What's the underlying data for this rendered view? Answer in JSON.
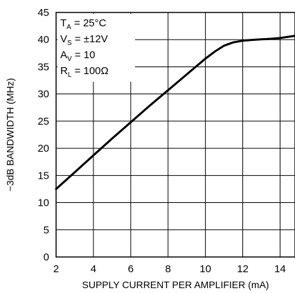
{
  "chart_data": {
    "type": "line",
    "title": "",
    "xlabel": "SUPPLY CURRENT PER AMPLIFIER (mA)",
    "ylabel": "−3dB BANDWIDTH (MHz)",
    "xlim": [
      2,
      14.8
    ],
    "ylim": [
      0,
      45
    ],
    "x_ticks": [
      "2",
      "4",
      "6",
      "8",
      "10",
      "12",
      "14"
    ],
    "y_ticks": [
      "0",
      "5",
      "10",
      "15",
      "20",
      "25",
      "30",
      "35",
      "40",
      "45"
    ],
    "grid": true,
    "annotations": {
      "ta": {
        "main": "T",
        "sub": "A",
        "rest": " = 25°C"
      },
      "vs": {
        "main": "V",
        "sub": "S",
        "rest": " = ±12V"
      },
      "av": {
        "main": "A",
        "sub": "V",
        "rest": " = 10"
      },
      "rl": {
        "main": "R",
        "sub": "L",
        "rest": " = 100Ω"
      }
    },
    "series": [
      {
        "x": [
          2,
          3,
          4,
          5,
          6,
          7,
          8,
          9,
          10,
          10.5,
          11,
          11.5,
          12,
          12.5,
          13,
          13.5,
          14,
          14.5,
          14.8
        ],
        "y": [
          12.5,
          15.6,
          18.7,
          21.8,
          24.8,
          27.8,
          30.7,
          33.6,
          36.5,
          37.8,
          38.9,
          39.5,
          39.8,
          39.95,
          40.05,
          40.15,
          40.3,
          40.55,
          40.7
        ]
      }
    ]
  }
}
